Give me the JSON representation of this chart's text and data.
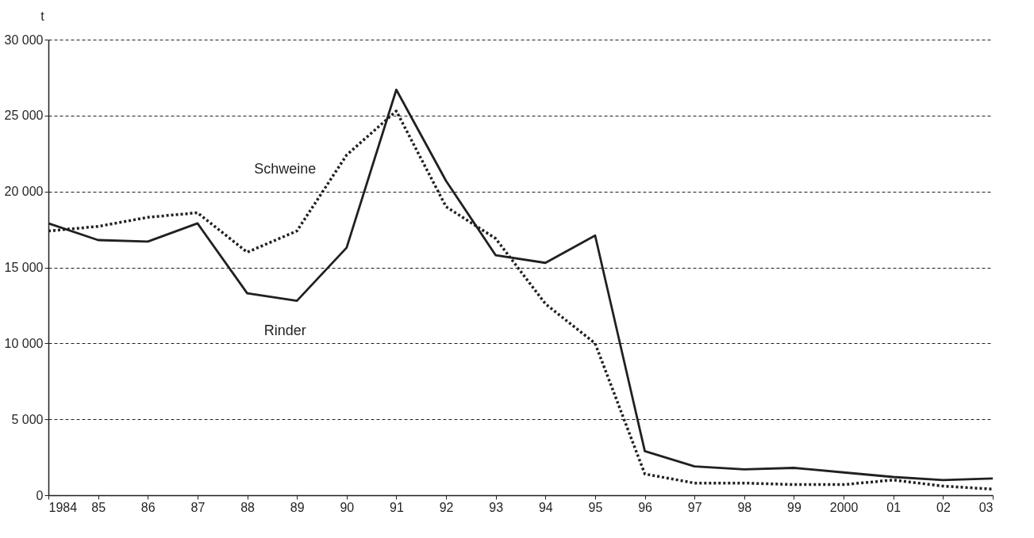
{
  "chart_data": {
    "type": "line",
    "ylabel": "t",
    "categories": [
      "1984",
      "85",
      "86",
      "87",
      "88",
      "89",
      "90",
      "91",
      "92",
      "93",
      "94",
      "95",
      "96",
      "97",
      "98",
      "99",
      "2000",
      "01",
      "02",
      "03"
    ],
    "series": [
      {
        "name": "Rinder",
        "color": "#231f20",
        "line_style": "solid",
        "values": [
          17900,
          16800,
          16700,
          17900,
          13300,
          12800,
          16300,
          26700,
          20700,
          15800,
          15300,
          17100,
          2900,
          1900,
          1700,
          1800,
          1500,
          1200,
          1000,
          1100
        ]
      },
      {
        "name": "Schweine",
        "color": "#231f20",
        "line_style": "dotted",
        "values": [
          17400,
          17700,
          18300,
          18600,
          16000,
          17400,
          22400,
          25300,
          19000,
          16900,
          12600,
          10000,
          1400,
          800,
          800,
          700,
          700,
          1000,
          600,
          400
        ]
      }
    ],
    "ylim": [
      0,
      30000
    ],
    "yticks": [
      {
        "value": 0,
        "label": "0"
      },
      {
        "value": 5000,
        "label": "5 000"
      },
      {
        "value": 10000,
        "label": "10 000"
      },
      {
        "value": 15000,
        "label": "15 000"
      },
      {
        "value": 20000,
        "label": "20 000"
      },
      {
        "value": 25000,
        "label": "25 000"
      },
      {
        "value": 30000,
        "label": "30 000"
      }
    ],
    "grid": "y",
    "marker": "none"
  }
}
